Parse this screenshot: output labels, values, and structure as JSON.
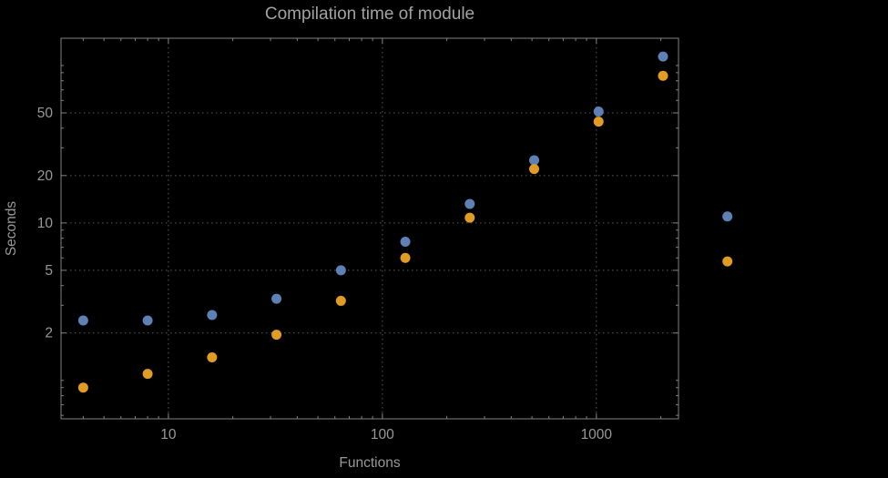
{
  "colors": {
    "background": "#000000",
    "frame": "#828282",
    "grid": "#5a5a5a",
    "text": "#999999",
    "title": "#a2a2a2",
    "series_blue": "#5e81b5",
    "series_orange": "#e19c24"
  },
  "chart_data": {
    "type": "scatter",
    "title": "Compilation time of module",
    "xlabel": "Functions",
    "ylabel": "Seconds",
    "x_scale": "log",
    "y_scale": "log",
    "grid": true,
    "legend": "none",
    "x_range": [
      3.15,
      2420
    ],
    "y_range": [
      0.57,
      149
    ],
    "x_ticks": [
      {
        "value": 10,
        "label": "10"
      },
      {
        "value": 100,
        "label": "100"
      },
      {
        "value": 1000,
        "label": "1000"
      }
    ],
    "y_ticks": [
      {
        "value": 2,
        "label": "2"
      },
      {
        "value": 5,
        "label": "5"
      },
      {
        "value": 10,
        "label": "10"
      },
      {
        "value": 20,
        "label": "20"
      },
      {
        "value": 50,
        "label": "50"
      }
    ],
    "x": [
      4,
      8,
      16,
      32,
      64,
      128,
      256,
      512,
      1024,
      2048,
      4096
    ],
    "series": [
      {
        "name": "series-blue",
        "color": "#5e81b5",
        "values": [
          2.4,
          2.4,
          2.6,
          3.3,
          5.0,
          7.6,
          13.2,
          25,
          51,
          114,
          11
        ]
      },
      {
        "name": "series-orange",
        "color": "#e19c24",
        "values": [
          0.9,
          1.1,
          1.4,
          1.95,
          3.2,
          6.0,
          10.8,
          22,
          44,
          86,
          5.7
        ]
      }
    ]
  }
}
